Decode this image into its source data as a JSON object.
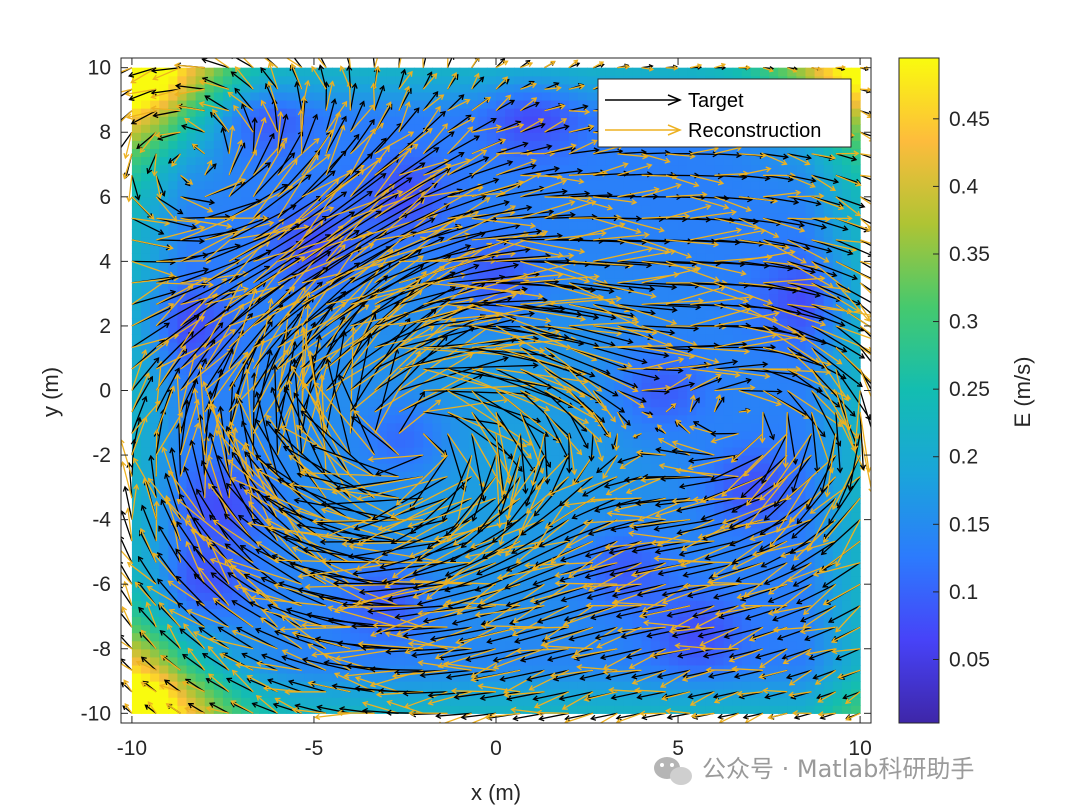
{
  "chart_data": {
    "type": "quiver",
    "xlabel": "x (m)",
    "ylabel": "y (m)",
    "xlim": [
      -10.3,
      10.3
    ],
    "ylim": [
      -10.3,
      10.3
    ],
    "xticks": [
      "-10",
      "-5",
      "0",
      "5",
      "10"
    ],
    "yticks": [
      "-10",
      "-8",
      "-6",
      "-4",
      "-2",
      "0",
      "2",
      "4",
      "6",
      "8",
      "10"
    ],
    "colorbar": {
      "label": "E (m/s)",
      "range": [
        0.003,
        0.495
      ],
      "ticks": [
        "0.05",
        "0.1",
        "0.15",
        "0.2",
        "0.25",
        "0.3",
        "0.35",
        "0.4",
        "0.45"
      ],
      "colormap": "parula"
    },
    "legend": {
      "location": "top-right",
      "entries": [
        {
          "label": "Target",
          "color": "#000000"
        },
        {
          "label": "Reconstruction",
          "color": "#EDB120"
        }
      ]
    },
    "grid": "off",
    "field": {
      "grid_x_range": [
        -10,
        10
      ],
      "grid_y_range": [
        -10,
        10
      ],
      "grid_points": 31,
      "vortices": [
        {
          "x": -2.4,
          "y": -1.5,
          "strength": 1.0,
          "rotation": "clockwise"
        },
        {
          "x": 7.2,
          "y": -0.8,
          "strength": 0.55,
          "rotation": "clockwise"
        },
        {
          "x": -8.0,
          "y": 6.5,
          "strength": -0.35,
          "rotation": "counterclockwise"
        }
      ],
      "error_peaks": [
        {
          "x": -10,
          "y": 10,
          "E": 0.45
        },
        {
          "x": -10,
          "y": -10,
          "E": 0.45
        },
        {
          "x": 10,
          "y": 10,
          "E": 0.35
        }
      ]
    }
  },
  "watermark": {
    "text": "公众号 · Matlab科研助手"
  },
  "colors": {
    "target": "#000000",
    "reconstruction": "#EDB120"
  }
}
